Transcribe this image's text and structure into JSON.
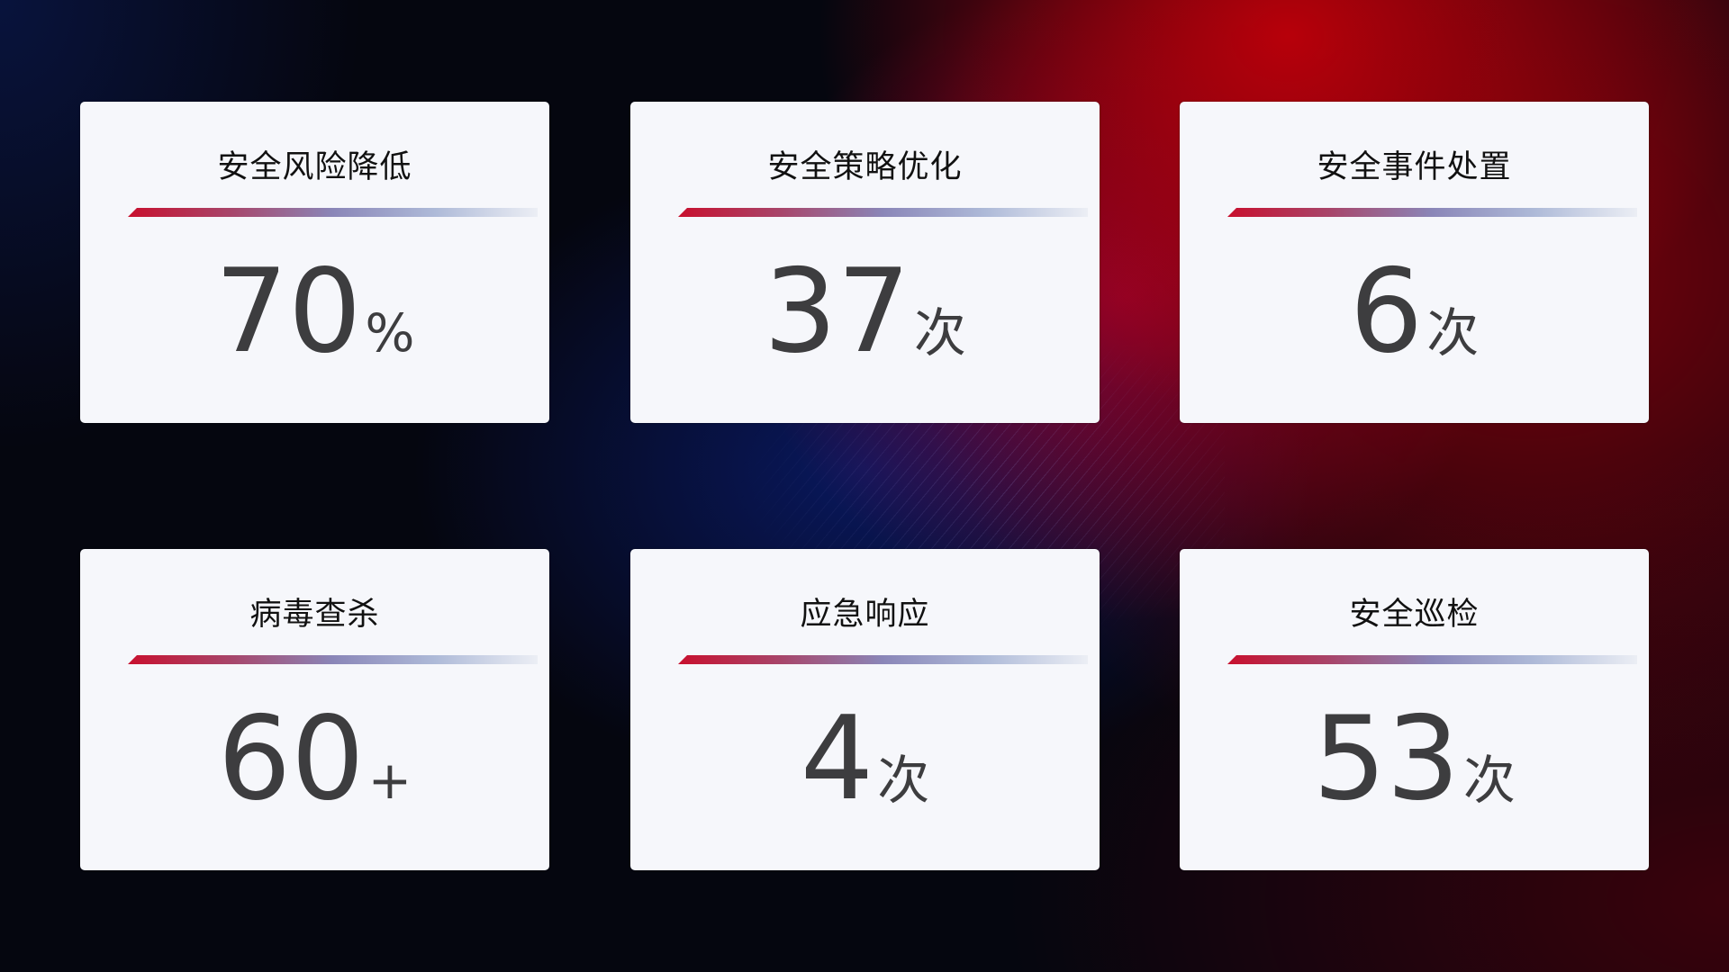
{
  "cards": [
    {
      "title": "安全风险降低",
      "value": "70",
      "unit": "%"
    },
    {
      "title": "安全策略优化",
      "value": "37",
      "unit": "次"
    },
    {
      "title": "安全事件处置",
      "value": "6",
      "unit": "次"
    },
    {
      "title": "病毒查杀",
      "value": "60",
      "unit": "+"
    },
    {
      "title": "应急响应",
      "value": "4",
      "unit": "次"
    },
    {
      "title": "安全巡检",
      "value": "53",
      "unit": "次"
    }
  ],
  "colors": {
    "bar_start": "#c8102e",
    "bar_mid": "#8a86b8",
    "card_bg": "#f6f7fb",
    "value_text": "#3d3d3f"
  }
}
